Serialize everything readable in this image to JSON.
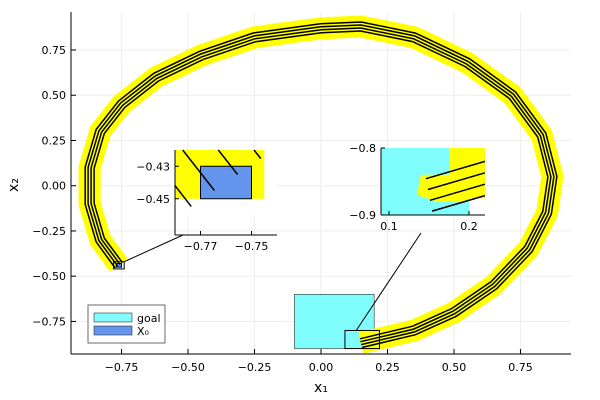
{
  "chart_data": {
    "type": "line",
    "xlabel": "x₁",
    "ylabel": "x₂",
    "xlim": [
      -0.94,
      0.94
    ],
    "ylim": [
      -0.93,
      0.96
    ],
    "xticks": [
      -0.75,
      -0.5,
      -0.25,
      0,
      0.25,
      0.5,
      0.75
    ],
    "xtick_labels": [
      "−0.75",
      "−0.50",
      "−0.25",
      "0.00",
      "0.25",
      "0.50",
      "0.75"
    ],
    "yticks": [
      0.75,
      0.5,
      0.25,
      0,
      -0.25,
      -0.5,
      -0.75
    ],
    "ytick_labels": [
      "0.75",
      "0.50",
      "0.25",
      "0.00",
      "−0.25",
      "−0.50",
      "−0.75"
    ],
    "grid": true,
    "legend_position": "bottom-left",
    "legend": [
      {
        "label": "goal",
        "color": "#7ffcfc"
      },
      {
        "label": "X₀",
        "color": "#6495ed"
      }
    ],
    "goal": {
      "x": [
        -0.1,
        0.2
      ],
      "y": [
        -0.9,
        -0.6
      ],
      "color": "#7ffcfc"
    },
    "initial_set": {
      "x": [
        -0.77,
        -0.75
      ],
      "y": [
        -0.45,
        -0.43
      ],
      "color": "#6495ed"
    },
    "reach_set_color": "#ffff00",
    "trajectory_color": "#000000",
    "trajectory": {
      "x": [
        -0.76,
        -0.83,
        -0.87,
        -0.87,
        -0.83,
        -0.75,
        -0.62,
        -0.45,
        -0.25,
        0.0,
        0.15,
        0.35,
        0.55,
        0.72,
        0.83,
        0.87,
        0.85,
        0.78,
        0.65,
        0.5,
        0.35,
        0.15
      ],
      "y": [
        -0.44,
        -0.3,
        -0.1,
        0.1,
        0.3,
        0.45,
        0.6,
        0.72,
        0.82,
        0.87,
        0.88,
        0.82,
        0.68,
        0.5,
        0.28,
        0.05,
        -0.15,
        -0.35,
        -0.55,
        -0.7,
        -0.8,
        -0.87
      ]
    },
    "insets": [
      {
        "xlim": [
          -0.78,
          -0.74
        ],
        "ylim": [
          -0.46,
          -0.42
        ],
        "xticks": [
          -0.77,
          -0.75
        ],
        "xtick_labels": [
          "−0.77",
          "−0.75"
        ],
        "yticks": [
          -0.43,
          -0.45
        ],
        "ytick_labels": [
          "−0.43",
          "−0.45"
        ]
      },
      {
        "xlim": [
          0.09,
          0.22
        ],
        "ylim": [
          -0.9,
          -0.8
        ],
        "xticks": [
          0.1,
          0.2
        ],
        "xtick_labels": [
          "0.1",
          "0.2"
        ],
        "yticks": [
          -0.8,
          -0.9
        ],
        "ytick_labels": [
          "−0.8",
          "−0.9"
        ]
      }
    ]
  }
}
